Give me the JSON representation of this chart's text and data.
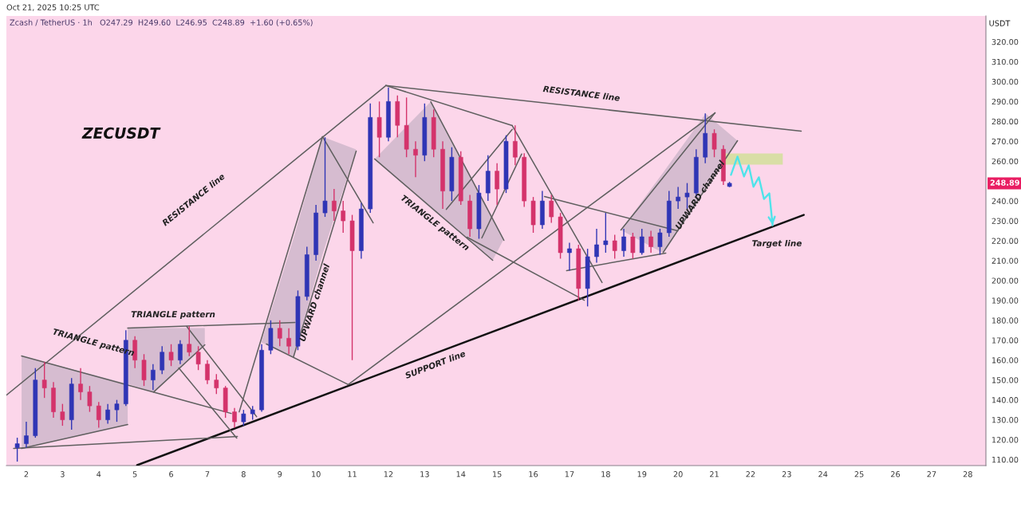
{
  "chart_data": {
    "type": "candlestick",
    "title": "ZECUSDT",
    "subtitle": "Zcash / TetherUS · 1h   O247.29  H249.60  L246.95  C248.89  +1.60 (+0.65%)",
    "ylabel": "USDT",
    "annotations": [
      "Oct 21, 2025 10:25 UTC",
      "RESISTANCE line",
      "TRIANGLE pattern",
      "TRIANGLE pattern",
      "UPWARD channel",
      "TRIANGLE pattern",
      "RESISTANCE line",
      "SUPPORT line",
      "UPWARD channel",
      "Target line",
      "248.89"
    ],
    "xlim": [
      1.45,
      28.5
    ],
    "ylim": [
      107,
      333
    ],
    "xticks": [
      2,
      3,
      4,
      5,
      6,
      7,
      8,
      9,
      10,
      11,
      12,
      13,
      14,
      15,
      16,
      17,
      18,
      19,
      20,
      21,
      22,
      23,
      24,
      25,
      26,
      27,
      28
    ],
    "yticks": [
      {
        "value": 110,
        "label": "110.00"
      },
      {
        "value": 120,
        "label": "120.00"
      },
      {
        "value": 130,
        "label": "130.00"
      },
      {
        "value": 140,
        "label": "140.00"
      },
      {
        "value": 150,
        "label": "150.00"
      },
      {
        "value": 160,
        "label": "160.00"
      },
      {
        "value": 170,
        "label": "170.00"
      },
      {
        "value": 180,
        "label": "180.00"
      },
      {
        "value": 190,
        "label": "190.00"
      },
      {
        "value": 200,
        "label": "200.00"
      },
      {
        "value": 210,
        "label": "210.00"
      },
      {
        "value": 220,
        "label": "220.00"
      },
      {
        "value": 230,
        "label": "230.00"
      },
      {
        "value": 240,
        "label": "240.00"
      },
      {
        "value": 260,
        "label": "260.00"
      },
      {
        "value": 270,
        "label": "270.00"
      },
      {
        "value": 280,
        "label": "280.00"
      },
      {
        "value": 290,
        "label": "290.00"
      },
      {
        "value": 300,
        "label": "300.00"
      },
      {
        "value": 310,
        "label": "310.00"
      },
      {
        "value": 320,
        "label": "320.00"
      }
    ],
    "series": [
      {
        "type": "area",
        "x": [
          1.87,
          4.8
        ],
        "values": [
          null,
          null
        ],
        "upper": [
          162.1,
          148.1
        ],
        "lower": [
          115.6,
          127.6
        ],
        "color": "#d6bcd0"
      },
      {
        "type": "area",
        "x": [
          4.8,
          5.52,
          6.93
        ],
        "values": [
          null,
          null,
          null
        ],
        "upper": [
          176.1,
          176.1,
          176.1
        ],
        "lower": [
          148.1,
          144.0,
          167.7
        ],
        "color": "#d6bcd0"
      },
      {
        "type": "area",
        "x": [
          8.49,
          9.38,
          10.18,
          11.11
        ],
        "values": [
          null,
          null,
          null,
          null
        ],
        "upper": [
          168.9,
          221.2,
          272.3,
          265.9
        ],
        "lower": [
          168.9,
          161.7,
          213.1,
          265.9
        ],
        "color": "#d6bcd0"
      },
      {
        "type": "area",
        "x": [
          11.62,
          13.17,
          14.88,
          15.19
        ],
        "values": [
          null,
          null,
          null,
          null
        ],
        "upper": [
          261.1,
          289.9,
          231.7,
          221.0
        ],
        "lower": [
          261.1,
          236.3,
          210.2,
          221.0
        ],
        "color": "#d6bcd0"
      },
      {
        "type": "area",
        "x": [
          18.42,
          19.59,
          20.76,
          21.64
        ],
        "values": [
          null,
          null,
          null,
          null
        ],
        "upper": [
          225.4,
          254.4,
          283.9,
          270.3
        ],
        "lower": [
          225.4,
          213.8,
          246.0,
          270.3
        ],
        "color": "#d6bcd0"
      },
      {
        "type": "area",
        "x": [
          21.22,
          22.89
        ],
        "values": [
          null,
          null
        ],
        "upper": [
          263.9,
          263.9
        ],
        "lower": [
          258.3,
          258.3
        ],
        "color": "#d9dea6"
      },
      {
        "type": "line",
        "x": [
          1.45,
          11.93
        ],
        "values": [
          142.4,
          298.0
        ],
        "color": "#5f5f5f"
      },
      {
        "type": "line",
        "x": [
          11.93,
          23.4
        ],
        "values": [
          298.0,
          275.1
        ],
        "color": "#5f5f5f"
      },
      {
        "type": "line",
        "x": [
          5.06,
          23.47
        ],
        "values": [
          107.2,
          233.0
        ],
        "color": "#111111"
      },
      {
        "type": "line",
        "x": [
          11.93,
          15.42
        ],
        "values": [
          298.0,
          277.9
        ],
        "color": "#5f5f5f"
      },
      {
        "type": "line",
        "x": [
          10.18,
          11.58
        ],
        "values": [
          272.3,
          229.0
        ],
        "color": "#5f5f5f"
      },
      {
        "type": "line",
        "x": [
          7.88,
          10.18
        ],
        "values": [
          134.0,
          272.3
        ],
        "color": "#5f5f5f"
      },
      {
        "type": "line",
        "x": [
          9.38,
          11.11
        ],
        "values": [
          161.7,
          265.1
        ],
        "color": "#5f5f5f"
      },
      {
        "type": "line",
        "x": [
          8.63,
          10.89
        ],
        "values": [
          168.1,
          147.7
        ],
        "color": "#5f5f5f"
      },
      {
        "type": "line",
        "x": [
          10.89,
          21.02
        ],
        "values": [
          147.7,
          284.3
        ],
        "color": "#5f5f5f"
      },
      {
        "type": "line",
        "x": [
          4.8,
          9.42
        ],
        "values": [
          176.1,
          178.9
        ],
        "color": "#5f5f5f"
      },
      {
        "type": "line",
        "x": [
          5.52,
          6.93
        ],
        "values": [
          144.0,
          167.7
        ],
        "color": "#5f5f5f"
      },
      {
        "type": "line",
        "x": [
          6.43,
          8.36
        ],
        "values": [
          176.9,
          131.6
        ],
        "color": "#5f5f5f"
      },
      {
        "type": "line",
        "x": [
          6.21,
          7.81
        ],
        "values": [
          156.1,
          120.8
        ],
        "color": "#5f5f5f"
      },
      {
        "type": "line",
        "x": [
          1.87,
          7.66
        ],
        "values": [
          162.1,
          133.2
        ],
        "color": "#5f5f5f"
      },
      {
        "type": "line",
        "x": [
          1.65,
          7.83
        ],
        "values": [
          115.6,
          121.6
        ],
        "color": "#5f5f5f"
      },
      {
        "type": "line",
        "x": [
          1.87,
          4.8
        ],
        "values": [
          115.6,
          127.6
        ],
        "color": "#5f5f5f"
      },
      {
        "type": "line",
        "x": [
          11.62,
          14.88
        ],
        "values": [
          261.1,
          210.2
        ],
        "color": "#5f5f5f"
      },
      {
        "type": "line",
        "x": [
          13.17,
          15.19
        ],
        "values": [
          289.9,
          220.2
        ],
        "color": "#5f5f5f"
      },
      {
        "type": "line",
        "x": [
          14.17,
          17.41
        ],
        "values": [
          221.8,
          190.1
        ],
        "color": "#5f5f5f"
      },
      {
        "type": "line",
        "x": [
          13.6,
          15.42
        ],
        "values": [
          235.8,
          276.0
        ],
        "color": "#5f5f5f"
      },
      {
        "type": "line",
        "x": [
          14.58,
          15.68
        ],
        "values": [
          221.4,
          263.6
        ],
        "color": "#5f5f5f"
      },
      {
        "type": "line",
        "x": [
          15.42,
          17.9
        ],
        "values": [
          277.9,
          199.0
        ],
        "color": "#5f5f5f"
      },
      {
        "type": "line",
        "x": [
          16.31,
          19.99
        ],
        "values": [
          242.2,
          225.0
        ],
        "color": "#5f5f5f"
      },
      {
        "type": "line",
        "x": [
          16.92,
          19.66
        ],
        "values": [
          205.0,
          213.8
        ],
        "color": "#5f5f5f"
      },
      {
        "type": "line",
        "x": [
          18.42,
          21.02
        ],
        "values": [
          225.4,
          284.3
        ],
        "color": "#5f5f5f"
      },
      {
        "type": "line",
        "x": [
          19.59,
          21.64
        ],
        "values": [
          214.2,
          270.3
        ],
        "color": "#5f5f5f"
      },
      {
        "type": "line",
        "x": [
          21.46,
          21.64,
          21.82,
          21.95,
          22.08,
          22.23,
          22.37,
          22.52,
          22.61
        ],
        "values": [
          253.1,
          262.3,
          252.3,
          257.9,
          247.1,
          251.9,
          241.0,
          243.8,
          227.8
        ],
        "color": "#4fe3ea"
      },
      {
        "x": [
          1.75,
          2,
          2.25,
          2.5,
          2.75,
          3,
          3.25,
          3.5,
          3.75,
          4,
          4.25,
          4.5,
          4.75,
          5,
          5.25,
          5.5,
          5.75,
          6,
          6.25,
          6.5,
          6.75,
          7,
          7.25,
          7.5,
          7.75,
          8,
          8.25,
          8.5,
          8.75,
          9,
          9.25,
          9.5,
          9.75,
          10,
          10.25,
          10.5,
          10.75,
          11,
          11.25,
          11.5,
          11.75,
          12,
          12.25,
          12.5,
          12.75,
          13,
          13.25,
          13.5,
          13.75,
          14,
          14.25,
          14.5,
          14.75,
          15,
          15.25,
          15.5,
          15.75,
          16,
          16.25,
          16.5,
          16.75,
          17,
          17.25,
          17.5,
          17.75,
          18,
          18.25,
          18.5,
          18.75,
          19,
          19.25,
          19.5,
          19.75,
          20,
          20.25,
          20.5,
          20.75,
          21,
          21.25,
          21.42
        ],
        "ohlc": [
          [
            116,
            121,
            109,
            118
          ],
          [
            118,
            129,
            116,
            122
          ],
          [
            122,
            156,
            121,
            150
          ],
          [
            150,
            159,
            141,
            146
          ],
          [
            146,
            149,
            131,
            134
          ],
          [
            134,
            138,
            127,
            130
          ],
          [
            130,
            151,
            125,
            148
          ],
          [
            148,
            156,
            140,
            144
          ],
          [
            144,
            147,
            134,
            137
          ],
          [
            137,
            139,
            126,
            130
          ],
          [
            130,
            138,
            128,
            135
          ],
          [
            135,
            140,
            129,
            138
          ],
          [
            138,
            175,
            137,
            170
          ],
          [
            170,
            172,
            156,
            160
          ],
          [
            160,
            163,
            147,
            150
          ],
          [
            150,
            158,
            145,
            155
          ],
          [
            155,
            167,
            153,
            164
          ],
          [
            164,
            168,
            157,
            160
          ],
          [
            160,
            170,
            158,
            168
          ],
          [
            168,
            177,
            162,
            164
          ],
          [
            164,
            167,
            155,
            158
          ],
          [
            158,
            160,
            148,
            150
          ],
          [
            150,
            153,
            143,
            146
          ],
          [
            146,
            147,
            131,
            134
          ],
          [
            134,
            136,
            126,
            129
          ],
          [
            129,
            135,
            127,
            133
          ],
          [
            133,
            137,
            130,
            135
          ],
          [
            135,
            168,
            134,
            165
          ],
          [
            165,
            180,
            163,
            176
          ],
          [
            176,
            180,
            167,
            171
          ],
          [
            171,
            176,
            163,
            167
          ],
          [
            167,
            195,
            165,
            192
          ],
          [
            192,
            217,
            190,
            213
          ],
          [
            213,
            238,
            210,
            234
          ],
          [
            234,
            272,
            232,
            240
          ],
          [
            240,
            246,
            230,
            235
          ],
          [
            235,
            240,
            224,
            230
          ],
          [
            230,
            233,
            160,
            215
          ],
          [
            215,
            239,
            211,
            236
          ],
          [
            236,
            289,
            234,
            282
          ],
          [
            282,
            290,
            262,
            272
          ],
          [
            272,
            297,
            270,
            290
          ],
          [
            290,
            293,
            272,
            278
          ],
          [
            278,
            292,
            262,
            266
          ],
          [
            266,
            270,
            252,
            263
          ],
          [
            263,
            289,
            260,
            282
          ],
          [
            282,
            286,
            262,
            266
          ],
          [
            266,
            270,
            236,
            245
          ],
          [
            245,
            267,
            240,
            262
          ],
          [
            262,
            265,
            238,
            240
          ],
          [
            240,
            243,
            222,
            226
          ],
          [
            226,
            248,
            221,
            244
          ],
          [
            244,
            263,
            240,
            255
          ],
          [
            255,
            259,
            238,
            246
          ],
          [
            246,
            273,
            244,
            270
          ],
          [
            270,
            278,
            258,
            262
          ],
          [
            262,
            264,
            237,
            240
          ],
          [
            240,
            242,
            224,
            228
          ],
          [
            228,
            245,
            226,
            240
          ],
          [
            240,
            243,
            229,
            232
          ],
          [
            232,
            234,
            211,
            214
          ],
          [
            214,
            219,
            205,
            216
          ],
          [
            216,
            218,
            190,
            196
          ],
          [
            196,
            216,
            187,
            212
          ],
          [
            212,
            226,
            209,
            218
          ],
          [
            218,
            234,
            214,
            220
          ],
          [
            220,
            223,
            211,
            215
          ],
          [
            215,
            226,
            212,
            222
          ],
          [
            222,
            224,
            211,
            214
          ],
          [
            214,
            226,
            213,
            222
          ],
          [
            222,
            225,
            214,
            217
          ],
          [
            217,
            226,
            213,
            224
          ],
          [
            224,
            245,
            222,
            240
          ],
          [
            240,
            247,
            236,
            242
          ],
          [
            242,
            249,
            236,
            244
          ],
          [
            244,
            266,
            242,
            262
          ],
          [
            262,
            284,
            259,
            274
          ],
          [
            274,
            276,
            262,
            266
          ],
          [
            266,
            268,
            248,
            250
          ],
          [
            247.29,
            249.6,
            246.95,
            248.89
          ]
        ],
        "colors": [
          "#2f35b5",
          "#2f35b5",
          "#2f35b5",
          "#d4336b",
          "#d4336b",
          "#d4336b",
          "#2f35b5",
          "#d4336b",
          "#d4336b",
          "#d4336b",
          "#2f35b5",
          "#2f35b5",
          "#2f35b5",
          "#d4336b",
          "#d4336b",
          "#2f35b5",
          "#2f35b5",
          "#d4336b",
          "#2f35b5",
          "#d4336b",
          "#d4336b",
          "#d4336b",
          "#d4336b",
          "#d4336b",
          "#d4336b",
          "#2f35b5",
          "#2f35b5",
          "#2f35b5",
          "#2f35b5",
          "#d4336b",
          "#d4336b",
          "#2f35b5",
          "#2f35b5",
          "#2f35b5",
          "#2f35b5",
          "#d4336b",
          "#d4336b",
          "#d4336b",
          "#2f35b5",
          "#2f35b5",
          "#d4336b",
          "#2f35b5",
          "#d4336b",
          "#d4336b",
          "#d4336b",
          "#2f35b5",
          "#d4336b",
          "#d4336b",
          "#2f35b5",
          "#d4336b",
          "#d4336b",
          "#2f35b5",
          "#2f35b5",
          "#d4336b",
          "#2f35b5",
          "#d4336b",
          "#d4336b",
          "#d4336b",
          "#2f35b5",
          "#d4336b",
          "#d4336b",
          "#2f35b5",
          "#d4336b",
          "#2f35b5",
          "#2f35b5",
          "#2f35b5",
          "#d4336b",
          "#2f35b5",
          "#d4336b",
          "#2f35b5",
          "#d4336b",
          "#2f35b5",
          "#2f35b5",
          "#2f35b5",
          "#2f35b5",
          "#2f35b5",
          "#2f35b5",
          "#d4336b",
          "#d4336b",
          "#2f35b5"
        ]
      }
    ]
  }
}
